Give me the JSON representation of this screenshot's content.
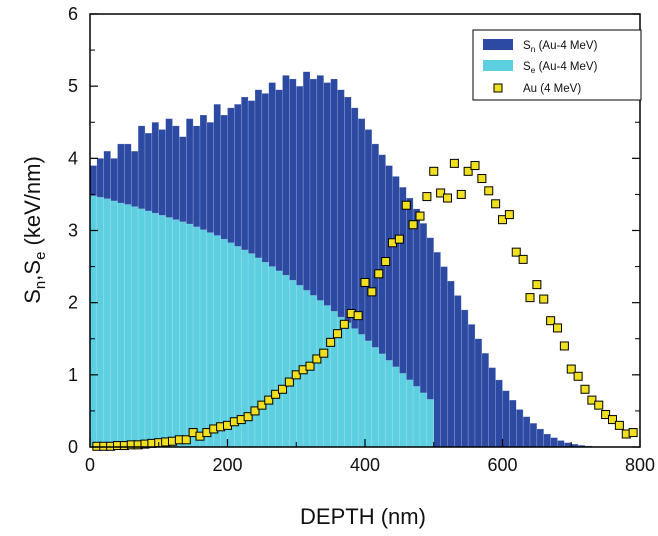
{
  "chart_data": {
    "type": "bar",
    "title": "",
    "xlabel": "DEPTH  (nm)",
    "ylabel": {
      "main_S1": "S",
      "sub_n": "n",
      "comma": ",",
      "main_S2": "S",
      "sub_e": "e",
      "units": " (keV/nm)"
    },
    "xlim": [
      0,
      800
    ],
    "ylim": [
      0,
      6
    ],
    "x_ticks": [
      "0",
      "200",
      "400",
      "600",
      "800"
    ],
    "y_ticks": [
      "0",
      "1",
      "2",
      "3",
      "4",
      "5",
      "6"
    ],
    "grid": false,
    "legend_position": "top-right",
    "bin_width": 10,
    "series": [
      {
        "name": "Sn (Au-4 MeV)",
        "label_main": "S",
        "label_sub": "n",
        "label_rest": " (Au-4 MeV)",
        "color": "#2d4aa3",
        "style": "stacked-total-bar",
        "x_start": 0,
        "values": [
          3.9,
          4.0,
          4.1,
          4.0,
          4.2,
          4.2,
          4.1,
          4.45,
          4.35,
          4.5,
          4.4,
          4.55,
          4.45,
          4.3,
          4.55,
          4.45,
          4.6,
          4.5,
          4.75,
          4.6,
          4.7,
          4.75,
          4.85,
          4.8,
          4.95,
          4.9,
          5.05,
          4.95,
          5.15,
          5.1,
          5.0,
          5.2,
          5.1,
          5.15,
          5.05,
          5.1,
          4.95,
          4.85,
          4.7,
          4.55,
          4.4,
          4.2,
          4.05,
          3.9,
          3.75,
          3.6,
          3.45,
          3.3,
          3.1,
          2.9,
          2.7,
          2.5,
          2.3,
          2.1,
          1.9,
          1.7,
          1.5,
          1.3,
          1.1,
          0.93,
          0.78,
          0.65,
          0.52,
          0.42,
          0.33,
          0.25,
          0.18,
          0.13,
          0.09,
          0.06,
          0.04,
          0.025,
          0.015,
          0.008,
          0.004,
          0.002,
          0.001,
          0.0005,
          0.0,
          0.0
        ]
      },
      {
        "name": "Se (Au-4 MeV)",
        "label_main": "S",
        "label_sub": "e",
        "label_rest": " (Au-4 MeV)",
        "color": "#5ccfe0",
        "style": "bar",
        "x_start": 0,
        "values": [
          3.48,
          3.46,
          3.44,
          3.41,
          3.38,
          3.36,
          3.33,
          3.3,
          3.27,
          3.24,
          3.21,
          3.18,
          3.15,
          3.12,
          3.09,
          3.05,
          3.01,
          2.97,
          2.93,
          2.88,
          2.83,
          2.78,
          2.73,
          2.68,
          2.62,
          2.56,
          2.5,
          2.44,
          2.38,
          2.31,
          2.24,
          2.17,
          2.1,
          2.03,
          1.96,
          1.88,
          1.8,
          1.72,
          1.64,
          1.56,
          1.47,
          1.38,
          1.29,
          1.2,
          1.11,
          1.02,
          0.93,
          0.84,
          0.75,
          0.66
        ]
      },
      {
        "name": "Au (4 MeV)",
        "color": "#f0e020",
        "style": "square-markers",
        "x": [
          10,
          20,
          30,
          40,
          50,
          60,
          70,
          80,
          90,
          100,
          110,
          120,
          130,
          140,
          150,
          160,
          170,
          180,
          190,
          200,
          210,
          220,
          230,
          240,
          250,
          260,
          270,
          280,
          290,
          300,
          310,
          320,
          330,
          340,
          350,
          360,
          370,
          380,
          390,
          400,
          410,
          420,
          430,
          440,
          450,
          460,
          470,
          480,
          490,
          500,
          510,
          520,
          530,
          540,
          550,
          560,
          570,
          580,
          590,
          600,
          610,
          620,
          630,
          640,
          650,
          660,
          670,
          680,
          690,
          700,
          710,
          720,
          730,
          740,
          750,
          760,
          770,
          780,
          790
        ],
        "values": [
          0.01,
          0.01,
          0.01,
          0.02,
          0.02,
          0.03,
          0.03,
          0.04,
          0.05,
          0.06,
          0.07,
          0.08,
          0.1,
          0.1,
          0.2,
          0.15,
          0.2,
          0.25,
          0.28,
          0.3,
          0.35,
          0.38,
          0.42,
          0.5,
          0.58,
          0.65,
          0.73,
          0.8,
          0.9,
          1.0,
          1.07,
          1.12,
          1.22,
          1.3,
          1.45,
          1.57,
          1.7,
          1.85,
          1.82,
          2.28,
          2.15,
          2.4,
          2.57,
          2.83,
          2.88,
          3.35,
          3.08,
          3.2,
          3.47,
          3.82,
          3.52,
          3.45,
          3.93,
          3.5,
          3.82,
          3.9,
          3.72,
          3.55,
          3.37,
          3.15,
          3.22,
          2.7,
          2.6,
          2.07,
          2.25,
          2.05,
          1.75,
          1.65,
          1.4,
          1.08,
          0.98,
          0.8,
          0.65,
          0.58,
          0.45,
          0.38,
          0.3,
          0.18,
          0.2
        ]
      }
    ]
  }
}
